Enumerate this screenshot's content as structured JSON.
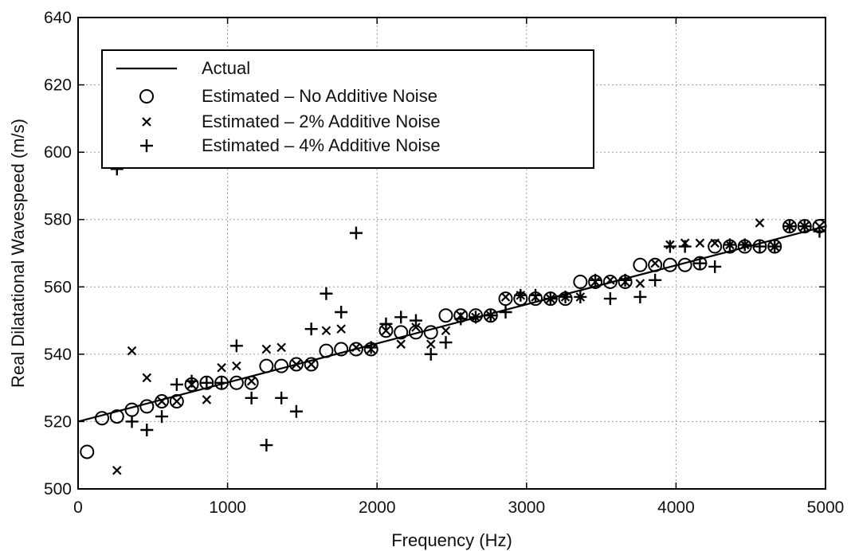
{
  "chart_data": {
    "type": "scatter",
    "xlabel": "Frequency (Hz)",
    "ylabel": "Real Dilatational Wavespeed (m/s)",
    "xlim": [
      0,
      5000
    ],
    "ylim": [
      500,
      640
    ],
    "grid": true,
    "legend_position": "top-left",
    "x_ticks": [
      "0",
      "1000",
      "2000",
      "3000",
      "4000",
      "5000"
    ],
    "y_ticks": [
      "500",
      "520",
      "540",
      "560",
      "580",
      "600",
      "620",
      "640"
    ],
    "line": {
      "name": "Actual",
      "x": [
        0,
        5000
      ],
      "y": [
        520,
        578
      ]
    },
    "series": [
      {
        "name": "Estimated – No Additive Noise",
        "marker": "circle",
        "x": [
          60,
          160,
          260,
          360,
          460,
          560,
          660,
          760,
          860,
          960,
          1060,
          1160,
          1260,
          1360,
          1460,
          1560,
          1660,
          1760,
          1860,
          1960,
          2060,
          2160,
          2260,
          2360,
          2460,
          2560,
          2660,
          2760,
          2860,
          2960,
          3060,
          3160,
          3260,
          3360,
          3460,
          3560,
          3660,
          3760,
          3860,
          3960,
          4060,
          4160,
          4260,
          4360,
          4460,
          4560,
          4660,
          4760,
          4860,
          4960
        ],
        "y": [
          511,
          521,
          521.5,
          523.5,
          524.5,
          526,
          526,
          531,
          531.5,
          531.5,
          531.5,
          531.5,
          536.5,
          536.5,
          537,
          537,
          541,
          541.5,
          541.5,
          541.5,
          547,
          546.5,
          546.5,
          546.5,
          551.5,
          551.5,
          551.5,
          551.5,
          556.5,
          556.5,
          556.5,
          556.5,
          556.5,
          561.5,
          561.5,
          561.5,
          561.5,
          566.5,
          566.5,
          566.5,
          566.5,
          567,
          572,
          572,
          572,
          572,
          572,
          578,
          578,
          578
        ]
      },
      {
        "name": "Estimated – 2% Additive Noise",
        "marker": "x",
        "x": [
          260,
          360,
          460,
          560,
          660,
          760,
          860,
          960,
          1060,
          1160,
          1260,
          1360,
          1460,
          1560,
          1660,
          1760,
          1860,
          1960,
          2060,
          2160,
          2260,
          2360,
          2460,
          2560,
          2660,
          2760,
          2860,
          2960,
          3060,
          3160,
          3260,
          3360,
          3460,
          3560,
          3660,
          3760,
          3860,
          3960,
          4060,
          4160,
          4260,
          4360,
          4460,
          4560,
          4660,
          4760,
          4860,
          4960
        ],
        "y": [
          505.5,
          541,
          533,
          526,
          526,
          531,
          526.5,
          536,
          536.5,
          532,
          541.5,
          542,
          537,
          537,
          547,
          547.5,
          542,
          541.5,
          547,
          543,
          548,
          543,
          547,
          551.5,
          551,
          551.5,
          557,
          557.5,
          557,
          556.5,
          557,
          557,
          561.5,
          562,
          561.5,
          561,
          567,
          572.5,
          573,
          573,
          573,
          572.5,
          572.5,
          579,
          572,
          578,
          578,
          578
        ]
      },
      {
        "name": "Estimated – 4% Additive Noise",
        "marker": "plus",
        "x": [
          260,
          360,
          460,
          560,
          660,
          760,
          860,
          960,
          1060,
          1160,
          1260,
          1360,
          1460,
          1560,
          1660,
          1760,
          1860,
          1960,
          2060,
          2160,
          2260,
          2360,
          2460,
          2560,
          2660,
          2760,
          2860,
          2960,
          3060,
          3160,
          3260,
          3360,
          3460,
          3560,
          3660,
          3760,
          3860,
          3960,
          4060,
          4160,
          4260,
          4360,
          4460,
          4560,
          4660,
          4760,
          4860,
          4960
        ],
        "y": [
          595,
          520,
          517.5,
          521.5,
          531,
          532,
          531.5,
          531.5,
          542.5,
          527,
          513,
          527,
          523,
          547.5,
          558,
          552.5,
          576,
          542,
          549,
          551,
          550,
          540,
          543.5,
          550.5,
          551,
          551.5,
          552.5,
          557.5,
          557.5,
          556.5,
          557,
          557,
          562,
          556.5,
          562,
          557,
          562,
          572,
          572,
          567,
          566,
          572.5,
          572.5,
          572,
          572,
          578,
          578,
          576.5
        ]
      }
    ]
  }
}
